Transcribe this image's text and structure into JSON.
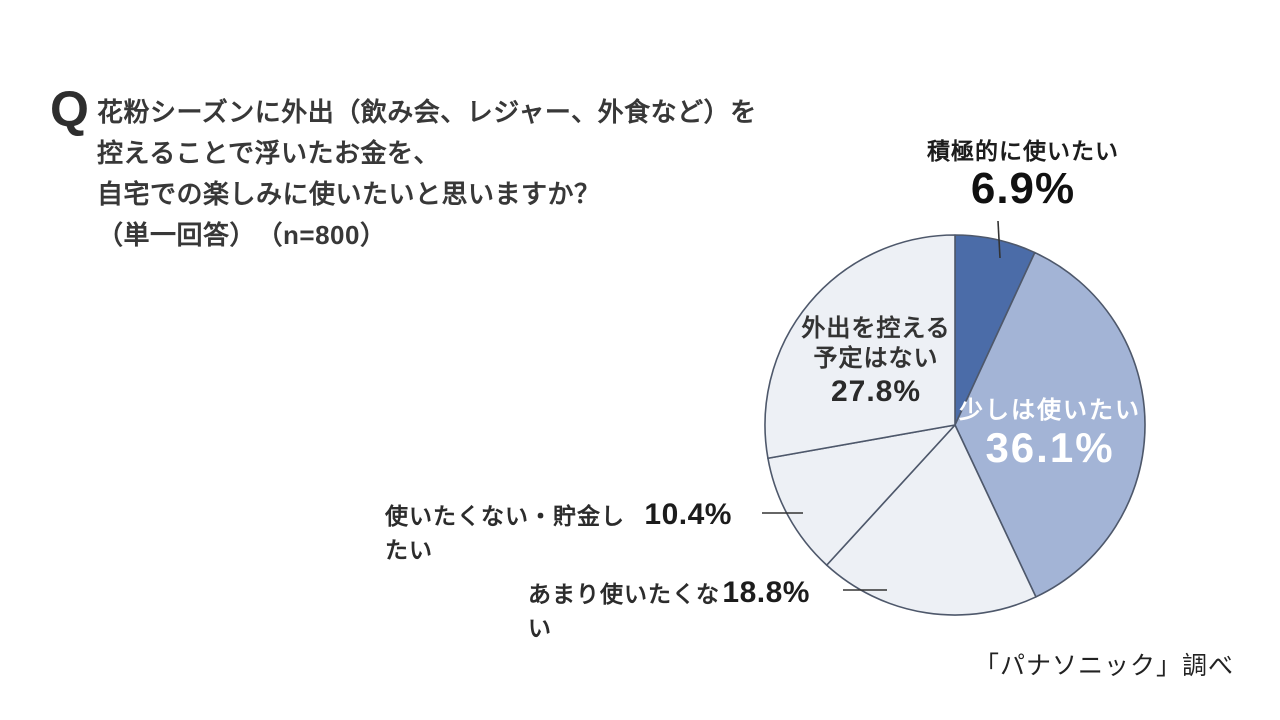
{
  "question": {
    "q_mark": "Q",
    "lines": [
      "花粉シーズンに外出（飲み会、レジャー、外食など）を",
      "控えることで浮いたお金を、",
      "自宅での楽しみに使いたいと思いますか？",
      "（単一回答）　（n=800）"
    ]
  },
  "labels": {
    "top": {
      "name": "積極的に使いたい",
      "pct": "6.9%"
    },
    "in_blue": {
      "name": "少しは使いたい",
      "pct": "36.1%"
    },
    "in_light": {
      "line1": "外出を控える",
      "line2": "予定はない",
      "pct": "27.8%"
    },
    "row1": {
      "name": "使いたくない・貯金したい",
      "pct": "10.4%"
    },
    "row2": {
      "name": "あまり使いたくない",
      "pct": "18.8%"
    }
  },
  "source": "「パナソニック」調べ",
  "colors": {
    "slice_strong": "#4b6ca8",
    "slice_medium": "#a3b4d6",
    "slice_light": "#edf0f5",
    "slice_border": "#4e586b",
    "leader_line": "#333333"
  },
  "chart_data": {
    "type": "pie",
    "title": "花粉シーズンに外出を控えることで浮いたお金を、自宅での楽しみに使いたいと思いますか？（単一回答）（n=800）",
    "source": "「パナソニック」調べ",
    "start_angle_deg": 0,
    "direction": "clockwise",
    "legend_position": "none",
    "slices": [
      {
        "label": "積極的に使いたい",
        "value": 6.9,
        "pct_label": "6.9%",
        "color": "#4b6ca8"
      },
      {
        "label": "少しは使いたい",
        "value": 36.1,
        "pct_label": "36.1%",
        "color": "#a3b4d6"
      },
      {
        "label": "あまり使いたくない",
        "value": 18.8,
        "pct_label": "18.8%",
        "color": "#edf0f5"
      },
      {
        "label": "使いたくない・貯金したい",
        "value": 10.4,
        "pct_label": "10.4%",
        "color": "#edf0f5"
      },
      {
        "label": "外出を控える予定はない",
        "value": 27.8,
        "pct_label": "27.8%",
        "color": "#edf0f5"
      }
    ]
  }
}
